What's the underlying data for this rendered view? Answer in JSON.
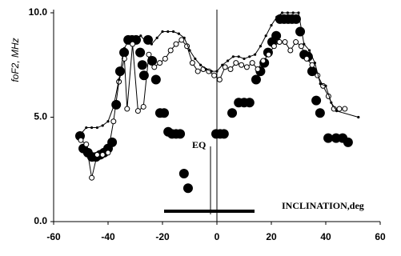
{
  "chart_data": {
    "type": "scatter",
    "y_label": "foF2, MHz",
    "x_label": "INCLINATION,deg",
    "annotation": "EQ",
    "xlim": [
      -60,
      60
    ],
    "ylim": [
      0,
      10
    ],
    "xticks": [
      -60,
      -40,
      -20,
      0,
      20,
      40,
      60
    ],
    "yticks": [
      {
        "value": 0,
        "label": "0.0"
      },
      {
        "value": 5,
        "label": "5.0"
      },
      {
        "value": 10,
        "label": "10.0"
      }
    ],
    "series": [
      {
        "color": "#000000",
        "marker": "filled",
        "line": false,
        "x": [
          -50.3,
          -49.1,
          -47.4,
          -45.9,
          -44.4,
          -42.9,
          -41.5,
          -40,
          -38.5,
          -37,
          -35.6,
          -34.1,
          -32.6,
          -31.2,
          -29.7,
          -28.2,
          -27.4,
          -26.8,
          -25.3,
          -23.8,
          -22.4,
          -20.9,
          -19.4,
          -17.9,
          -16.5,
          -15,
          -13.5,
          -12.1,
          -10.6,
          -0.3,
          1.2,
          2.6,
          5.6,
          8,
          10,
          12,
          14.4,
          16,
          17.4,
          18.8,
          20.3,
          21.8,
          23.2,
          24.7,
          26.2,
          27.6,
          29.1,
          30.6,
          32.1,
          33.5,
          35,
          36.5,
          37.9,
          40.9,
          43.8,
          46.2,
          48.2
        ],
        "values": [
          4.1,
          3.5,
          3.3,
          3.1,
          3.1,
          3.2,
          3.3,
          3.5,
          3.8,
          5.6,
          7.2,
          8.1,
          8.7,
          8.7,
          8.7,
          8.1,
          7.5,
          7.0,
          8.7,
          7.7,
          6.8,
          5.2,
          5.2,
          4.3,
          4.2,
          4.2,
          4.2,
          2.3,
          1.6,
          4.2,
          4.2,
          4.2,
          5.2,
          5.7,
          5.7,
          5.7,
          6.8,
          7.2,
          7.6,
          8.1,
          8.6,
          8.9,
          9.7,
          9.7,
          9.7,
          9.7,
          9.7,
          9.1,
          8.0,
          7.9,
          7.2,
          5.8,
          5.2,
          4.0,
          4.0,
          4.0,
          3.8
        ]
      },
      {
        "color": "#000000",
        "marker": "open",
        "line": true,
        "x": [
          -50,
          -48,
          -46,
          -44,
          -42,
          -40,
          -38,
          -36,
          -34,
          -33,
          -31,
          -29,
          -27,
          -25,
          -23,
          -21,
          -19,
          -17,
          -15,
          -13,
          -11,
          -9,
          -7,
          -5,
          -3,
          -1,
          1,
          3,
          5,
          7,
          9,
          11,
          13,
          15,
          17,
          19,
          21,
          23,
          25,
          27,
          29,
          31,
          33,
          35,
          37,
          39,
          41,
          43,
          45,
          47
        ],
        "values": [
          3.9,
          3.7,
          2.1,
          3.2,
          3.2,
          3.3,
          4.8,
          6.7,
          7.8,
          5.4,
          8.5,
          5.3,
          5.5,
          8.0,
          7.4,
          7.6,
          7.8,
          8.2,
          8.5,
          8.7,
          8.4,
          7.6,
          7.2,
          7.3,
          7.2,
          7.0,
          6.8,
          7.4,
          7.3,
          7.6,
          7.5,
          7.4,
          7.6,
          7.3,
          7.7,
          8.0,
          8.4,
          8.6,
          8.6,
          8.2,
          8.6,
          8.4,
          7.8,
          7.5,
          7.0,
          6.5,
          6.0,
          5.4,
          5.4,
          5.4
        ]
      },
      {
        "color": "#000000",
        "marker": "dot",
        "line": true,
        "x": [
          -50,
          -48,
          -46,
          -44,
          -42,
          -40,
          -38,
          -36,
          -34,
          -32,
          -30,
          -28,
          -26,
          -24,
          -22,
          -20,
          -18,
          -16,
          -14,
          -12,
          -10,
          -8,
          -6,
          -4,
          -2,
          0,
          2,
          4,
          6,
          8,
          10,
          12,
          14,
          16,
          18,
          20,
          22,
          24,
          26,
          28,
          30,
          32,
          34,
          36,
          38,
          40,
          42,
          44,
          52
        ],
        "values": [
          4.2,
          4.5,
          4.5,
          4.5,
          4.6,
          4.8,
          5.5,
          6.8,
          8.3,
          8.8,
          8.8,
          8.9,
          8.6,
          8.5,
          8.8,
          9.1,
          9.1,
          9.1,
          9.0,
          8.8,
          8.2,
          7.8,
          7.5,
          7.3,
          7.2,
          7.2,
          7.5,
          7.7,
          7.9,
          7.9,
          7.8,
          7.9,
          8.0,
          8.4,
          8.9,
          9.4,
          9.8,
          10.0,
          10.0,
          10.0,
          10.0,
          8.5,
          8.2,
          7.6,
          6.6,
          6.5,
          5.7,
          5.3,
          5.0
        ]
      }
    ]
  }
}
